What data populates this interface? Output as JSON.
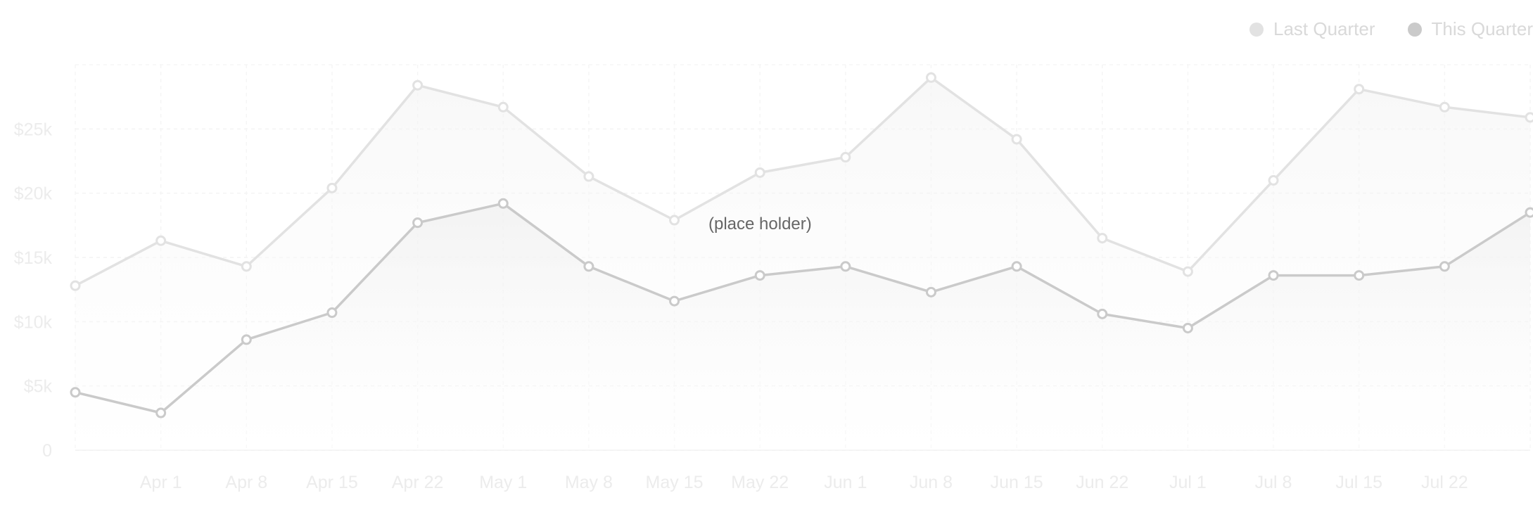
{
  "chart_data": {
    "type": "line",
    "categories": [
      "",
      "Apr 1",
      "Apr 8",
      "Apr 15",
      "Apr 22",
      "May 1",
      "May 8",
      "May 15",
      "May 22",
      "Jun 1",
      "Jun 8",
      "Jun 15",
      "Jun 22",
      "Jul 1",
      "Jul 8",
      "Jul 15",
      "Jul 22",
      ""
    ],
    "series": [
      {
        "name": "Last Quarter",
        "color": "#e2e2e2",
        "values": [
          12800,
          16300,
          14300,
          20400,
          28400,
          26700,
          21300,
          17900,
          21600,
          22800,
          29000,
          24200,
          16500,
          13900,
          21000,
          28100,
          26700,
          25900
        ]
      },
      {
        "name": "This Quarter",
        "color": "#cacaca",
        "values": [
          4500,
          2900,
          8600,
          10700,
          17700,
          19200,
          14300,
          11600,
          13600,
          14300,
          12300,
          14300,
          10600,
          9500,
          13600,
          13600,
          14300,
          18500
        ]
      }
    ],
    "ylim": [
      0,
      30000
    ],
    "yticks": [
      {
        "value": 0,
        "label": "0"
      },
      {
        "value": 5000,
        "label": "$5k"
      },
      {
        "value": 10000,
        "label": "$10k"
      },
      {
        "value": 15000,
        "label": "$15k"
      },
      {
        "value": 20000,
        "label": "$20k"
      },
      {
        "value": 25000,
        "label": "$25k"
      }
    ],
    "title": "",
    "xlabel": "",
    "ylabel": "",
    "grid": true,
    "legend": "top-right",
    "annotations": [
      "(place holder)"
    ]
  }
}
